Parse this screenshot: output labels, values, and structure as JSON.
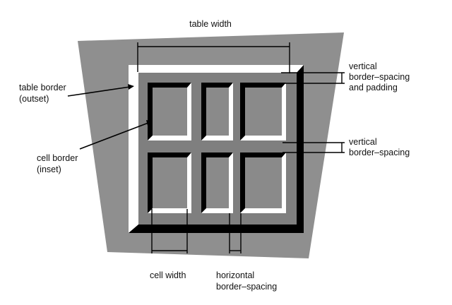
{
  "labels": {
    "table_width": "table width",
    "table_border": [
      "table border",
      "(outset)"
    ],
    "cell_border": [
      "cell border",
      "(inset)"
    ],
    "vertical_spacing_padding": [
      "vertical",
      "border–spacing",
      "and padding"
    ],
    "vertical_spacing": [
      "vertical",
      "border–spacing"
    ],
    "cell_width": "cell width",
    "horizontal_spacing": [
      "horizontal",
      "border–spacing"
    ]
  },
  "colors": {
    "background": "#ffffff",
    "trapezoid": "#8f8f8f",
    "table_face": "#7f7f7f",
    "highlight": "#ffffff",
    "shadow": "#000000",
    "cell_face": "#8a8a8a",
    "line": "#000000"
  },
  "grid": {
    "rows": 2,
    "columns": 3
  }
}
